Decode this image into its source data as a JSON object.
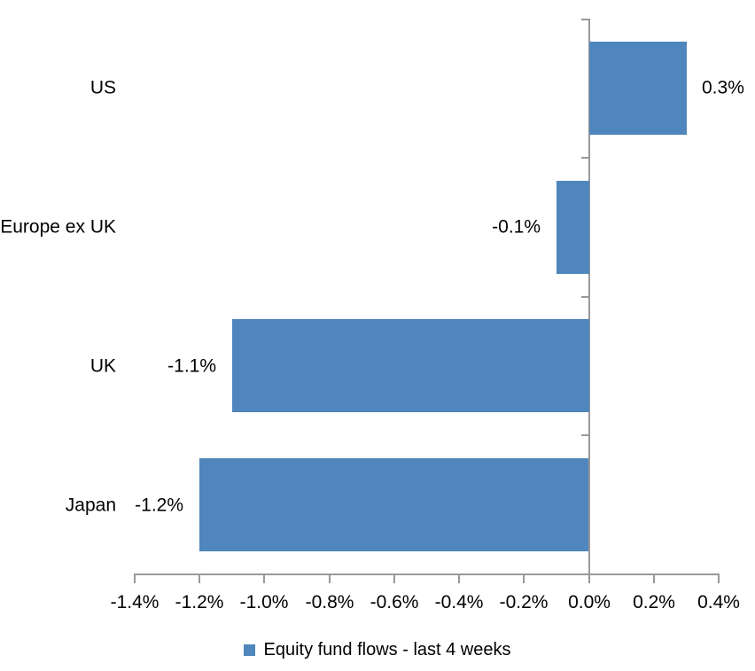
{
  "chart_data": {
    "type": "bar",
    "orientation": "horizontal",
    "categories": [
      "US",
      "Europe ex UK",
      "UK",
      "Japan"
    ],
    "values": [
      0.3,
      -0.1,
      -1.1,
      -1.2
    ],
    "value_labels": [
      "0.3%",
      "-0.1%",
      "-1.1%",
      "-1.2%"
    ],
    "series": [
      {
        "name": "Equity fund flows - last 4 weeks",
        "values": [
          0.3,
          -0.1,
          -1.1,
          -1.2
        ]
      }
    ],
    "x_axis": {
      "min": -1.4,
      "max": 0.4,
      "tick_step": 0.2,
      "tick_labels": [
        "-1.4%",
        "-1.2%",
        "-1.0%",
        "-0.8%",
        "-0.6%",
        "-0.4%",
        "-0.2%",
        "0.0%",
        "0.2%",
        "0.4%"
      ],
      "unit": "percent"
    },
    "grid": false,
    "data_labels_shown": true,
    "legend": {
      "label": "Equity fund flows - last 4 weeks",
      "position": "bottom",
      "swatch_color": "#4E86BD"
    },
    "colors": {
      "bar": "#4E86BD",
      "axis": "#999999",
      "text": "#000000",
      "background": "#FFFFFF"
    }
  }
}
